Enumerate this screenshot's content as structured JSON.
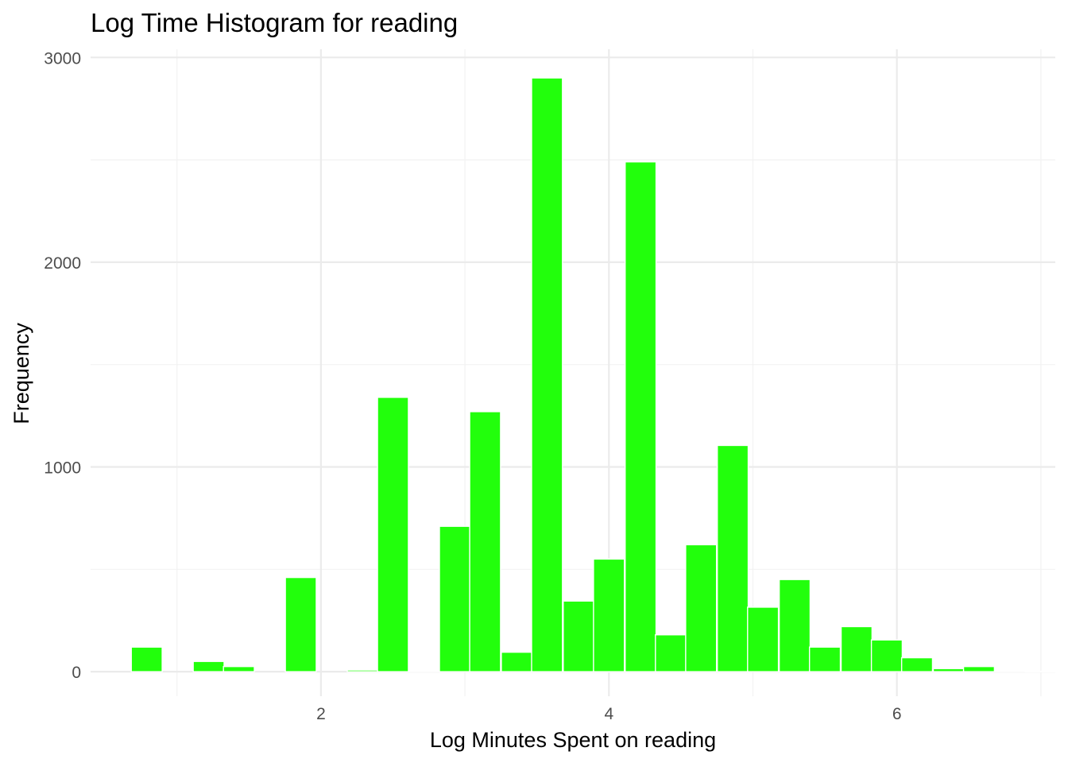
{
  "chart_data": {
    "type": "bar",
    "title": "Log Time Histogram for reading",
    "xlabel": "Log Minutes Spent on reading",
    "ylabel": "Frequency",
    "bar_color": "#22ff0c",
    "grid": true,
    "xlim": [
      0.4,
      7.1
    ],
    "ylim": [
      -120,
      3040
    ],
    "x_ticks": [
      2,
      4,
      6
    ],
    "y_ticks": [
      0,
      1000,
      2000,
      3000
    ],
    "x_ticks_labels": [
      "2",
      "4",
      "6"
    ],
    "y_ticks_labels": [
      "0",
      "1000",
      "2000",
      "3000"
    ],
    "bin_width": 0.2143,
    "bins": [
      {
        "x": 0.79,
        "count": 120
      },
      {
        "x": 1.0,
        "count": 0
      },
      {
        "x": 1.22,
        "count": 50
      },
      {
        "x": 1.43,
        "count": 25
      },
      {
        "x": 1.65,
        "count": 0
      },
      {
        "x": 1.86,
        "count": 460
      },
      {
        "x": 2.07,
        "count": 0
      },
      {
        "x": 2.29,
        "count": 8
      },
      {
        "x": 2.5,
        "count": 1340
      },
      {
        "x": 2.72,
        "count": 5
      },
      {
        "x": 2.93,
        "count": 710
      },
      {
        "x": 3.14,
        "count": 1270
      },
      {
        "x": 3.36,
        "count": 95
      },
      {
        "x": 3.57,
        "count": 2900
      },
      {
        "x": 3.79,
        "count": 345
      },
      {
        "x": 4.0,
        "count": 550
      },
      {
        "x": 4.22,
        "count": 2490
      },
      {
        "x": 4.43,
        "count": 180
      },
      {
        "x": 4.64,
        "count": 620
      },
      {
        "x": 4.86,
        "count": 1105
      },
      {
        "x": 5.07,
        "count": 315
      },
      {
        "x": 5.29,
        "count": 450
      },
      {
        "x": 5.5,
        "count": 120
      },
      {
        "x": 5.72,
        "count": 220
      },
      {
        "x": 5.93,
        "count": 155
      },
      {
        "x": 6.14,
        "count": 68
      },
      {
        "x": 6.36,
        "count": 15
      },
      {
        "x": 6.57,
        "count": 25
      },
      {
        "x": 6.79,
        "count": 4
      },
      {
        "x": 7.0,
        "count": 2
      }
    ]
  }
}
